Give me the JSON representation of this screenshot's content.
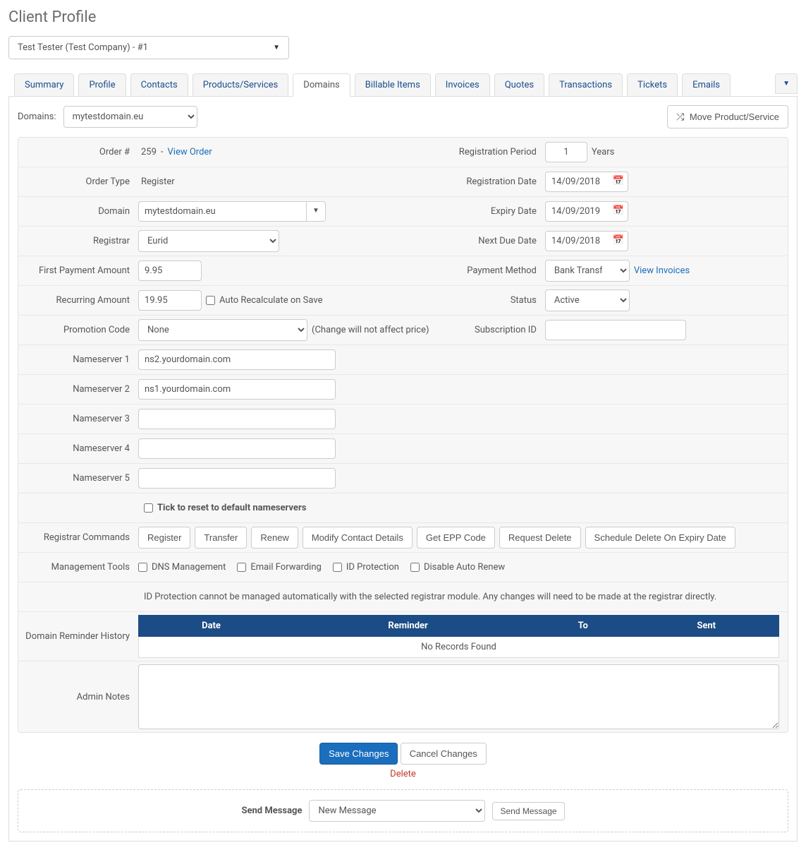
{
  "pageTitle": "Client Profile",
  "clientSelector": "Test Tester (Test Company) - #1",
  "tabs": [
    "Summary",
    "Profile",
    "Contacts",
    "Products/Services",
    "Domains",
    "Billable Items",
    "Invoices",
    "Quotes",
    "Transactions",
    "Tickets",
    "Emails"
  ],
  "activeTab": "Domains",
  "toolbar": {
    "domainsLabel": "Domains:",
    "domainSelected": "mytestdomain.eu",
    "moveBtn": "Move Product/Service"
  },
  "labels": {
    "orderNum": "Order #",
    "orderType": "Order Type",
    "domain": "Domain",
    "registrar": "Registrar",
    "firstPayment": "First Payment Amount",
    "recurring": "Recurring Amount",
    "promoCode": "Promotion Code",
    "ns1": "Nameserver 1",
    "ns2": "Nameserver 2",
    "ns3": "Nameserver 3",
    "ns4": "Nameserver 4",
    "ns5": "Nameserver 5",
    "regPeriod": "Registration Period",
    "regDate": "Registration Date",
    "expDate": "Expiry Date",
    "nextDue": "Next Due Date",
    "payMethod": "Payment Method",
    "status": "Status",
    "subId": "Subscription ID",
    "regCommands": "Registrar Commands",
    "mgmtTools": "Management Tools",
    "reminderHistory": "Domain Reminder History",
    "adminNotes": "Admin Notes",
    "sendMessage": "Send Message"
  },
  "values": {
    "orderNum": "259",
    "viewOrder": "View Order",
    "orderType": "Register",
    "domain": "mytestdomain.eu",
    "registrar": "Eurid",
    "firstPayment": "9.95",
    "recurring": "19.95",
    "autoRecalc": "Auto Recalculate on Save",
    "promoCode": "None",
    "promoHint": "(Change will not affect price)",
    "ns1": "ns2.yourdomain.com",
    "ns2": "ns1.yourdomain.com",
    "ns3": "",
    "ns4": "",
    "ns5": "",
    "resetNs": "Tick to reset to default nameservers",
    "regPeriod": "1",
    "years": "Years",
    "regDate": "14/09/2018",
    "expDate": "14/09/2019",
    "nextDue": "14/09/2018",
    "payMethod": "Bank Transfer",
    "viewInvoices": "View Invoices",
    "status": "Active",
    "subId": ""
  },
  "registrarCommands": [
    "Register",
    "Transfer",
    "Renew",
    "Modify Contact Details",
    "Get EPP Code",
    "Request Delete",
    "Schedule Delete On Expiry Date"
  ],
  "mgmtTools": {
    "dns": "DNS Management",
    "email": "Email Forwarding",
    "idprot": "ID Protection",
    "disableRenew": "Disable Auto Renew",
    "note": "ID Protection cannot be managed automatically with the selected registrar module. Any changes will need to be made at the registrar directly."
  },
  "reminderTable": {
    "cols": [
      "Date",
      "Reminder",
      "To",
      "Sent"
    ],
    "noRecords": "No Records Found"
  },
  "actions": {
    "save": "Save Changes",
    "cancel": "Cancel Changes",
    "delete": "Delete"
  },
  "messageBox": {
    "selected": "New Message",
    "button": "Send Message"
  }
}
